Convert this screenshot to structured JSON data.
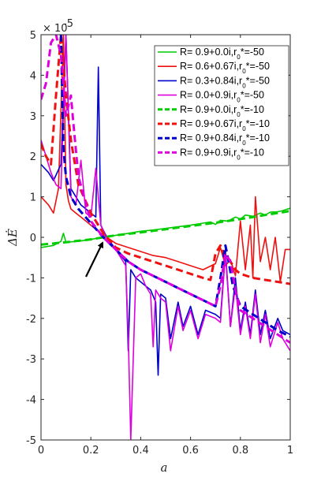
{
  "chart_data": {
    "type": "line",
    "xlabel": "a",
    "ylabel": "ΔĖ",
    "y_multiplier_label": "× 10",
    "y_multiplier_exponent": "-5",
    "xlim": [
      0,
      1
    ],
    "ylim": [
      -5,
      5
    ],
    "x_ticks": [
      "0",
      "0.2",
      "0.4",
      "0.6",
      "0.8",
      "1"
    ],
    "y_ticks": [
      "-5",
      "-4",
      "-3",
      "-2",
      "-1",
      "0",
      "1",
      "2",
      "3",
      "4",
      "5"
    ],
    "grid": false,
    "legend_position": "top-right",
    "annotation": "arrow pointing to the crossing point near a = 0.25, ΔĖ = 0",
    "series": [
      {
        "name": "R= 0.9+0.0i,r0*=-50",
        "legend_main": "R= 0.9+0.0i,r",
        "legend_sub": "0",
        "legend_tail": "*=-50",
        "color": "#00cc00",
        "dash": "solid",
        "x": [
          0,
          0.05,
          0.08,
          0.09,
          0.1,
          0.15,
          0.2,
          0.25,
          0.3,
          0.35,
          0.4,
          0.45,
          0.5,
          0.55,
          0.6,
          0.65,
          0.68,
          0.7,
          0.72,
          0.75,
          0.78,
          0.8,
          0.82,
          0.85,
          0.88,
          0.9,
          0.92,
          0.95,
          0.97,
          1.0
        ],
        "y": [
          -0.25,
          -0.2,
          -0.1,
          0.1,
          -0.12,
          -0.1,
          -0.05,
          0.0,
          0.05,
          0.1,
          0.15,
          0.18,
          0.22,
          0.26,
          0.3,
          0.35,
          0.38,
          0.32,
          0.42,
          0.4,
          0.5,
          0.45,
          0.55,
          0.52,
          0.6,
          0.55,
          0.62,
          0.63,
          0.66,
          0.72
        ]
      },
      {
        "name": "R= 0.6+0.67i,r0*=-50",
        "legend_main": "R= 0.6+0.67i,r",
        "legend_sub": "0",
        "legend_tail": "*=-50",
        "color": "#ee1111",
        "dash": "solid",
        "x": [
          0,
          0.03,
          0.05,
          0.07,
          0.09,
          0.1,
          0.11,
          0.12,
          0.14,
          0.16,
          0.18,
          0.2,
          0.22,
          0.24,
          0.26,
          0.3,
          0.35,
          0.4,
          0.45,
          0.5,
          0.55,
          0.6,
          0.65,
          0.7,
          0.72,
          0.74,
          0.76,
          0.78,
          0.8,
          0.82,
          0.84,
          0.85,
          0.86,
          0.88,
          0.9,
          0.92,
          0.94,
          0.96,
          0.98,
          1.0
        ],
        "y": [
          1.0,
          0.8,
          0.6,
          1.2,
          5.0,
          1.3,
          0.9,
          0.7,
          0.6,
          0.5,
          0.4,
          0.3,
          0.2,
          0.1,
          0.02,
          -0.15,
          -0.25,
          -0.35,
          -0.45,
          -0.5,
          -0.6,
          -0.7,
          -0.8,
          -0.65,
          -0.25,
          -0.7,
          -0.55,
          -0.95,
          0.4,
          -0.8,
          0.3,
          -1.0,
          1.0,
          -0.6,
          0.0,
          -0.8,
          0.0,
          -1.1,
          -0.3,
          -0.3
        ]
      },
      {
        "name": "R= 0.3+0.84i,r0*=-50",
        "legend_main": "R= 0.3+0.84i,r",
        "legend_sub": "0",
        "legend_tail": "*=-50",
        "color": "#0000cc",
        "dash": "solid",
        "x": [
          0,
          0.03,
          0.05,
          0.08,
          0.1,
          0.12,
          0.14,
          0.16,
          0.18,
          0.2,
          0.22,
          0.23,
          0.24,
          0.26,
          0.3,
          0.34,
          0.35,
          0.36,
          0.38,
          0.4,
          0.42,
          0.44,
          0.46,
          0.47,
          0.48,
          0.5,
          0.52,
          0.55,
          0.57,
          0.6,
          0.63,
          0.66,
          0.7,
          0.72,
          0.74,
          0.76,
          0.78,
          0.8,
          0.82,
          0.84,
          0.86,
          0.88,
          0.9,
          0.92,
          0.95,
          0.97,
          1.0
        ],
        "y": [
          1.8,
          1.6,
          1.4,
          1.8,
          5.0,
          1.2,
          1.0,
          0.8,
          0.7,
          0.6,
          0.5,
          4.2,
          0.3,
          0.05,
          -0.3,
          -0.6,
          -2.8,
          -0.8,
          -1.0,
          -1.1,
          -1.2,
          -1.3,
          -1.6,
          -3.4,
          -1.4,
          -1.5,
          -2.5,
          -1.6,
          -2.2,
          -1.7,
          -2.4,
          -1.8,
          -1.9,
          -2.0,
          -0.3,
          -2.2,
          -1.0,
          -2.3,
          -1.6,
          -2.4,
          -1.3,
          -2.4,
          -1.8,
          -2.5,
          -2.0,
          -2.3,
          -2.4
        ]
      },
      {
        "name": "R= 0.0+0.9i,r0*=-50",
        "legend_main": "R= 0.0+0.9i,r",
        "legend_sub": "0",
        "legend_tail": "*=-50",
        "color": "#dd00dd",
        "dash": "solid",
        "x": [
          0,
          0.02,
          0.04,
          0.06,
          0.08,
          0.1,
          0.12,
          0.14,
          0.16,
          0.18,
          0.2,
          0.22,
          0.24,
          0.26,
          0.3,
          0.34,
          0.35,
          0.36,
          0.38,
          0.4,
          0.42,
          0.44,
          0.45,
          0.46,
          0.48,
          0.5,
          0.52,
          0.55,
          0.57,
          0.6,
          0.63,
          0.66,
          0.7,
          0.72,
          0.74,
          0.76,
          0.78,
          0.8,
          0.82,
          0.84,
          0.86,
          0.88,
          0.9,
          0.92,
          0.95,
          0.97,
          1.0
        ],
        "y": [
          2.4,
          2.0,
          1.6,
          1.3,
          1.2,
          5.0,
          1.0,
          0.8,
          1.9,
          0.6,
          0.5,
          1.7,
          0.3,
          0.02,
          -0.3,
          -0.7,
          -2.4,
          -5.0,
          -1.0,
          -0.9,
          -1.2,
          -1.4,
          -2.7,
          -1.3,
          -1.5,
          -1.6,
          -2.8,
          -1.7,
          -2.3,
          -1.8,
          -2.5,
          -1.9,
          -2.0,
          -2.1,
          -0.4,
          -2.2,
          -1.2,
          -2.4,
          -1.7,
          -2.5,
          -1.4,
          -2.6,
          -1.9,
          -2.7,
          -2.1,
          -2.5,
          -2.8
        ]
      },
      {
        "name": "R= 0.9+0.0i,r0*=-10",
        "legend_main": "R= 0.9+0.0i,r",
        "legend_sub": "0",
        "legend_tail": "*=-10",
        "color": "#00cc00",
        "dash": "dashed",
        "x": [
          0,
          0.1,
          0.2,
          0.25,
          0.3,
          0.4,
          0.5,
          0.6,
          0.7,
          0.8,
          0.9,
          1.0
        ],
        "y": [
          -0.18,
          -0.12,
          -0.05,
          0.0,
          0.05,
          0.12,
          0.2,
          0.28,
          0.36,
          0.45,
          0.55,
          0.65
        ]
      },
      {
        "name": "R= 0.9+0.67i,r0*=-10",
        "legend_main": "R= 0.9+0.67i,r",
        "legend_sub": "0",
        "legend_tail": "*=-10",
        "color": "#ee1111",
        "dash": "dashed",
        "x": [
          0.0,
          0.02,
          0.04,
          0.06,
          0.08,
          0.1,
          0.12,
          0.15,
          0.2,
          0.25,
          0.3,
          0.35,
          0.4,
          0.45,
          0.5,
          0.55,
          0.6,
          0.65,
          0.68,
          0.7,
          0.72,
          0.74,
          0.76,
          0.78,
          0.8,
          0.85,
          0.9,
          0.95,
          1.0
        ],
        "y": [
          2.3,
          2.0,
          1.8,
          3.5,
          5.0,
          3.5,
          2.4,
          1.3,
          0.6,
          0.1,
          -0.25,
          -0.4,
          -0.5,
          -0.6,
          -0.7,
          -0.8,
          -0.9,
          -1.0,
          -1.05,
          -0.4,
          -0.2,
          -0.5,
          -0.6,
          -0.8,
          -0.9,
          -1.0,
          -1.05,
          -1.1,
          -1.15
        ]
      },
      {
        "name": "R= 0.9+0.84i,r0*=-10",
        "legend_main": "R= 0.9+0.84i,r",
        "legend_sub": "0",
        "legend_tail": "*=-10",
        "color": "#0000cc",
        "dash": "dashed",
        "x": [
          0.08,
          0.085,
          0.09,
          0.1,
          0.12,
          0.15,
          0.2,
          0.25,
          0.3,
          0.35,
          0.4,
          0.45,
          0.5,
          0.55,
          0.6,
          0.65,
          0.7,
          0.72,
          0.74,
          0.75,
          0.77,
          0.8,
          0.85,
          0.9,
          0.95,
          1.0
        ],
        "y": [
          5.0,
          3.5,
          2.2,
          1.5,
          1.0,
          0.7,
          0.35,
          0.0,
          -0.3,
          -0.6,
          -0.8,
          -0.95,
          -1.1,
          -1.25,
          -1.4,
          -1.55,
          -1.7,
          -1.0,
          -0.2,
          -0.5,
          -1.2,
          -1.7,
          -1.9,
          -2.1,
          -2.3,
          -2.45
        ]
      },
      {
        "name": "R= 0.9+0.9i,r0*=-10",
        "legend_main": "R= 0.9+0.9i,r",
        "legend_sub": "0",
        "legend_tail": "*=-10",
        "color": "#dd00dd",
        "dash": "dashed",
        "x": [
          0.0,
          0.02,
          0.04,
          0.06,
          0.08,
          0.1,
          0.12,
          0.13,
          0.15,
          0.2,
          0.25,
          0.3,
          0.35,
          0.4,
          0.45,
          0.5,
          0.55,
          0.6,
          0.65,
          0.7,
          0.72,
          0.74,
          0.76,
          0.78,
          0.8,
          0.85,
          0.9,
          0.95,
          1.0
        ],
        "y": [
          3.4,
          3.8,
          4.8,
          5.0,
          4.5,
          3.0,
          3.5,
          2.8,
          1.5,
          0.4,
          0.0,
          -0.3,
          -0.6,
          -0.8,
          -0.95,
          -1.1,
          -1.25,
          -1.4,
          -1.55,
          -1.7,
          -1.2,
          -0.4,
          -0.6,
          -1.3,
          -1.8,
          -2.0,
          -2.2,
          -2.4,
          -2.6
        ]
      }
    ]
  }
}
